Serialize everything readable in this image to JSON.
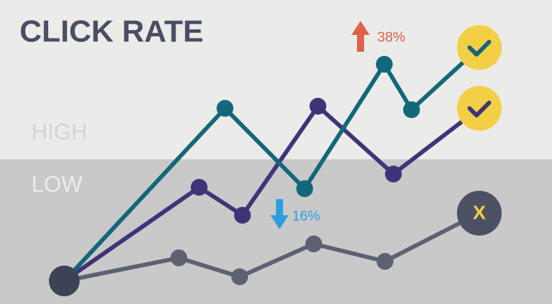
{
  "title": "CLICK RATE",
  "zones": {
    "high": "HIGH",
    "low": "LOW"
  },
  "annotations": {
    "up": "38%",
    "down": "16%"
  },
  "end_marker": "X"
}
